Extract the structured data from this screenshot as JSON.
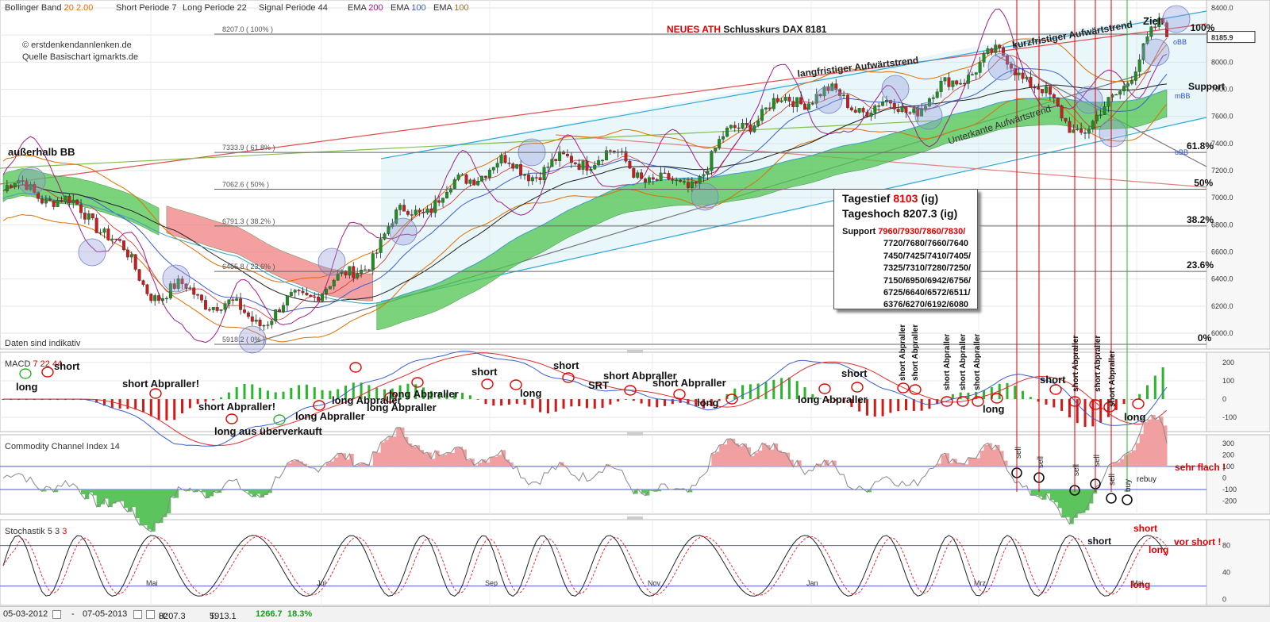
{
  "header": {
    "items": [
      {
        "label": "Bollinger Band",
        "value": "20",
        "value2": "2.00"
      },
      {
        "label": "Short Periode",
        "value": "7"
      },
      {
        "label": "Long Periode",
        "value": "22"
      },
      {
        "label": "Signal Periode",
        "value": "44"
      },
      {
        "label": "EMA",
        "value": "200"
      },
      {
        "label": "EMA",
        "value": "100"
      },
      {
        "label": "EMA",
        "value": "100"
      }
    ],
    "colors": {
      "bb": "#e07000",
      "ema200": "#a0208a",
      "ema100a": "#3a60d0",
      "ema100b": "#a07020"
    }
  },
  "credits": [
    "© erstdenkendannlenken.de",
    "Quelle Basischart igmarkts.de"
  ],
  "title": {
    "highlight": "NEUES ATH",
    "rest": "Schlusskurs DAX 8181"
  },
  "notes": {
    "daten": "Daten sind indikativ",
    "ausserhalb": "außerhalb BB",
    "ziel": "Ziel."
  },
  "trend_labels": {
    "langfristig": "langfristiger Aufwärtstrend",
    "kurzfristig": "kurzfristiger Aufwärtstrend",
    "unterkante": "Unterkante Aufwärtstrend",
    "support": "Support",
    "obb": "oBB",
    "mbb": "mBB",
    "ubb": "uBB"
  },
  "fib_levels": [
    {
      "label": "8207.0 ( 100% )",
      "pct": "100%",
      "value": 8207.0
    },
    {
      "label": "7333.9 ( 61.8% )",
      "pct": "61.8%",
      "value": 7333.9
    },
    {
      "label": "7062.6 ( 50% )",
      "pct": "50%",
      "value": 7062.6
    },
    {
      "label": "6791.3 ( 38.2% )",
      "pct": "38.2%",
      "value": 6791.3
    },
    {
      "label": "6455.8 ( 23.6% )",
      "pct": "23.6%",
      "value": 6455.8
    },
    {
      "label": "5918.2 ( 0% )",
      "pct": "0%",
      "value": 5918.2
    }
  ],
  "last_price": "8185.9",
  "info_box": {
    "tagestief_label": "Tagestief",
    "tagestief_value": "8103",
    "tagestief_suffix": "(ig)",
    "tageshoch_label": "Tageshoch 8207.3 (ig)",
    "support_label": "Support",
    "support_red": "7960/7930/7860/7830/",
    "support_lines": [
      "7720/7680/7660/7640",
      "7450/7425/7410/7405/",
      "7325/7310/7280/7250/",
      "7150/6950/6942/6756/",
      "6725/6640/6572/6511/",
      "6376/6270/6192/6080"
    ]
  },
  "panels": {
    "macd": {
      "label": "MACD",
      "p1": "7",
      "p2": "22",
      "p3": "44"
    },
    "cci": {
      "label": "Commodity Channel Index",
      "p1": "14"
    },
    "stoch": {
      "label": "Stochastik",
      "p1": "5",
      "p2": "3",
      "p3": "3"
    }
  },
  "macd_annotations": [
    {
      "text": "long",
      "size": 13
    },
    {
      "text": "short",
      "size": 13
    },
    {
      "text": "short Abpraller!",
      "size": 13
    },
    {
      "text": "short Abpraller!",
      "size": 13
    },
    {
      "text": "long Abpraller",
      "size": 10
    },
    {
      "text": "long Abpraller",
      "size": 10
    },
    {
      "text": "long Abpraller",
      "size": 10
    },
    {
      "text": "long Abpraller",
      "size": 10
    },
    {
      "text": "long aus überverkauft",
      "size": 13
    },
    {
      "text": "short",
      "size": 13
    },
    {
      "text": "long",
      "size": 13
    },
    {
      "text": "short",
      "size": 13
    },
    {
      "text": "short Abpraller",
      "size": 10
    },
    {
      "text": "SRT",
      "size": 10
    },
    {
      "text": "short Abpraller",
      "size": 10
    },
    {
      "text": "long",
      "size": 13
    },
    {
      "text": "short",
      "size": 13
    },
    {
      "text": "long Abpraller",
      "size": 10
    },
    {
      "text": "long",
      "size": 13
    },
    {
      "text": "short",
      "size": 13
    },
    {
      "text": "long",
      "size": 13
    }
  ],
  "macd_vertical_labels": [
    "short Abpraller",
    "short Abpraller",
    "short Abpraller",
    "short Abpraller",
    "short Abpraller",
    "short Abpraller",
    "short Abpraller",
    "short Abpraller"
  ],
  "cci_labels": {
    "signals": [
      "sell",
      "sell",
      "sell",
      "sell",
      "sell",
      "buy"
    ],
    "rebuy": "rebuy",
    "flach": "sehr flach !"
  },
  "stoch_labels": {
    "short1": "short",
    "short2": "short",
    "long1": "long",
    "long2": "long",
    "vor_short": "vor short !"
  },
  "footer": {
    "start": "05-03-2012",
    "dash": "-",
    "end": "07-05-2013",
    "h_label": "H:",
    "h": "8207.3",
    "t_label": "T:",
    "t": "5913.1",
    "diff": "1266.7",
    "pct": "18.3%"
  },
  "chart_data": [
    {
      "type": "line",
      "title": "DAX",
      "x_tick_labels": [
        "Mai",
        "Jul",
        "Sep",
        "Nov",
        "Jan",
        "Mrz",
        "Mai"
      ],
      "y_tick_labels": [
        "8400.0",
        "8200.0",
        "8000.0",
        "7800.0",
        "7600.0",
        "7400.0",
        "7200.0",
        "7000.0",
        "6800.0",
        "6600.0",
        "6400.0",
        "6200.0",
        "6000.0"
      ],
      "ylim": [
        5900,
        8430
      ],
      "grid": true,
      "series": [
        {
          "name": "Close",
          "x": [
            "2012-03",
            "2012-04",
            "2012-05",
            "2012-06",
            "2012-07",
            "2012-08",
            "2012-09",
            "2012-10",
            "2012-11",
            "2012-12",
            "2013-01",
            "2013-02",
            "2013-03",
            "2013-04",
            "2013-05"
          ],
          "values": [
            7050,
            6850,
            6350,
            6050,
            6450,
            6850,
            7300,
            7250,
            7100,
            7600,
            7700,
            7750,
            7950,
            7600,
            8180
          ]
        }
      ]
    },
    {
      "type": "bar",
      "title": "MACD 7 22 44",
      "y_tick_labels": [
        "200",
        "100",
        "0",
        "-100"
      ],
      "ylim": [
        -160,
        230
      ]
    },
    {
      "type": "area",
      "title": "Commodity Channel Index 14",
      "y_tick_labels": [
        "300",
        "200",
        "100",
        "0",
        "-100",
        "-200"
      ],
      "ylim": [
        -300,
        320
      ]
    },
    {
      "type": "line",
      "title": "Stochastik 5 3 3",
      "y_tick_labels": [
        "80",
        "40",
        "0"
      ],
      "ylim": [
        -5,
        110
      ]
    }
  ]
}
